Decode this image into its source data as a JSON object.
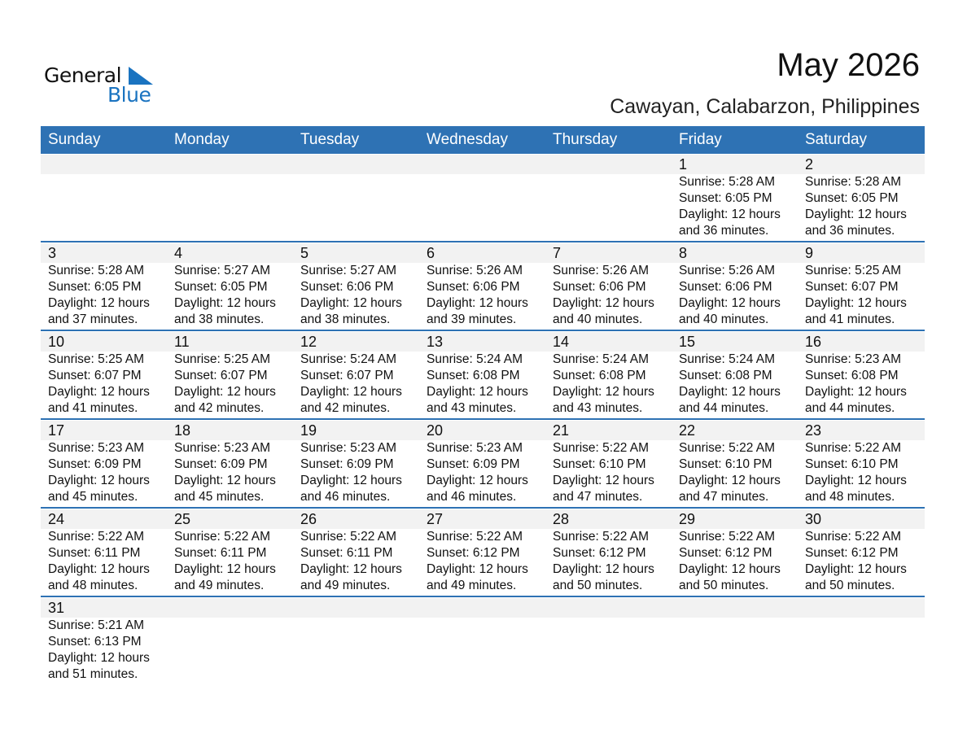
{
  "logo": {
    "line1": "General",
    "line2": "Blue"
  },
  "header": {
    "title": "May 2026",
    "subtitle": "Cawayan, Calabarzon, Philippines"
  },
  "colors": {
    "header_bg": "#2e72b4",
    "date_strip": "#f2f2f2",
    "logo_blue": "#1a73c0"
  },
  "weekdays": [
    "Sunday",
    "Monday",
    "Tuesday",
    "Wednesday",
    "Thursday",
    "Friday",
    "Saturday"
  ],
  "weeks": [
    [
      null,
      null,
      null,
      null,
      null,
      {
        "day": "1",
        "sunrise": "Sunrise: 5:28 AM",
        "sunset": "Sunset: 6:05 PM",
        "daylight": "Daylight: 12 hours",
        "minutes": "and 36 minutes."
      },
      {
        "day": "2",
        "sunrise": "Sunrise: 5:28 AM",
        "sunset": "Sunset: 6:05 PM",
        "daylight": "Daylight: 12 hours",
        "minutes": "and 36 minutes."
      }
    ],
    [
      {
        "day": "3",
        "sunrise": "Sunrise: 5:28 AM",
        "sunset": "Sunset: 6:05 PM",
        "daylight": "Daylight: 12 hours",
        "minutes": "and 37 minutes."
      },
      {
        "day": "4",
        "sunrise": "Sunrise: 5:27 AM",
        "sunset": "Sunset: 6:05 PM",
        "daylight": "Daylight: 12 hours",
        "minutes": "and 38 minutes."
      },
      {
        "day": "5",
        "sunrise": "Sunrise: 5:27 AM",
        "sunset": "Sunset: 6:06 PM",
        "daylight": "Daylight: 12 hours",
        "minutes": "and 38 minutes."
      },
      {
        "day": "6",
        "sunrise": "Sunrise: 5:26 AM",
        "sunset": "Sunset: 6:06 PM",
        "daylight": "Daylight: 12 hours",
        "minutes": "and 39 minutes."
      },
      {
        "day": "7",
        "sunrise": "Sunrise: 5:26 AM",
        "sunset": "Sunset: 6:06 PM",
        "daylight": "Daylight: 12 hours",
        "minutes": "and 40 minutes."
      },
      {
        "day": "8",
        "sunrise": "Sunrise: 5:26 AM",
        "sunset": "Sunset: 6:06 PM",
        "daylight": "Daylight: 12 hours",
        "minutes": "and 40 minutes."
      },
      {
        "day": "9",
        "sunrise": "Sunrise: 5:25 AM",
        "sunset": "Sunset: 6:07 PM",
        "daylight": "Daylight: 12 hours",
        "minutes": "and 41 minutes."
      }
    ],
    [
      {
        "day": "10",
        "sunrise": "Sunrise: 5:25 AM",
        "sunset": "Sunset: 6:07 PM",
        "daylight": "Daylight: 12 hours",
        "minutes": "and 41 minutes."
      },
      {
        "day": "11",
        "sunrise": "Sunrise: 5:25 AM",
        "sunset": "Sunset: 6:07 PM",
        "daylight": "Daylight: 12 hours",
        "minutes": "and 42 minutes."
      },
      {
        "day": "12",
        "sunrise": "Sunrise: 5:24 AM",
        "sunset": "Sunset: 6:07 PM",
        "daylight": "Daylight: 12 hours",
        "minutes": "and 42 minutes."
      },
      {
        "day": "13",
        "sunrise": "Sunrise: 5:24 AM",
        "sunset": "Sunset: 6:08 PM",
        "daylight": "Daylight: 12 hours",
        "minutes": "and 43 minutes."
      },
      {
        "day": "14",
        "sunrise": "Sunrise: 5:24 AM",
        "sunset": "Sunset: 6:08 PM",
        "daylight": "Daylight: 12 hours",
        "minutes": "and 43 minutes."
      },
      {
        "day": "15",
        "sunrise": "Sunrise: 5:24 AM",
        "sunset": "Sunset: 6:08 PM",
        "daylight": "Daylight: 12 hours",
        "minutes": "and 44 minutes."
      },
      {
        "day": "16",
        "sunrise": "Sunrise: 5:23 AM",
        "sunset": "Sunset: 6:08 PM",
        "daylight": "Daylight: 12 hours",
        "minutes": "and 44 minutes."
      }
    ],
    [
      {
        "day": "17",
        "sunrise": "Sunrise: 5:23 AM",
        "sunset": "Sunset: 6:09 PM",
        "daylight": "Daylight: 12 hours",
        "minutes": "and 45 minutes."
      },
      {
        "day": "18",
        "sunrise": "Sunrise: 5:23 AM",
        "sunset": "Sunset: 6:09 PM",
        "daylight": "Daylight: 12 hours",
        "minutes": "and 45 minutes."
      },
      {
        "day": "19",
        "sunrise": "Sunrise: 5:23 AM",
        "sunset": "Sunset: 6:09 PM",
        "daylight": "Daylight: 12 hours",
        "minutes": "and 46 minutes."
      },
      {
        "day": "20",
        "sunrise": "Sunrise: 5:23 AM",
        "sunset": "Sunset: 6:09 PM",
        "daylight": "Daylight: 12 hours",
        "minutes": "and 46 minutes."
      },
      {
        "day": "21",
        "sunrise": "Sunrise: 5:22 AM",
        "sunset": "Sunset: 6:10 PM",
        "daylight": "Daylight: 12 hours",
        "minutes": "and 47 minutes."
      },
      {
        "day": "22",
        "sunrise": "Sunrise: 5:22 AM",
        "sunset": "Sunset: 6:10 PM",
        "daylight": "Daylight: 12 hours",
        "minutes": "and 47 minutes."
      },
      {
        "day": "23",
        "sunrise": "Sunrise: 5:22 AM",
        "sunset": "Sunset: 6:10 PM",
        "daylight": "Daylight: 12 hours",
        "minutes": "and 48 minutes."
      }
    ],
    [
      {
        "day": "24",
        "sunrise": "Sunrise: 5:22 AM",
        "sunset": "Sunset: 6:11 PM",
        "daylight": "Daylight: 12 hours",
        "minutes": "and 48 minutes."
      },
      {
        "day": "25",
        "sunrise": "Sunrise: 5:22 AM",
        "sunset": "Sunset: 6:11 PM",
        "daylight": "Daylight: 12 hours",
        "minutes": "and 49 minutes."
      },
      {
        "day": "26",
        "sunrise": "Sunrise: 5:22 AM",
        "sunset": "Sunset: 6:11 PM",
        "daylight": "Daylight: 12 hours",
        "minutes": "and 49 minutes."
      },
      {
        "day": "27",
        "sunrise": "Sunrise: 5:22 AM",
        "sunset": "Sunset: 6:12 PM",
        "daylight": "Daylight: 12 hours",
        "minutes": "and 49 minutes."
      },
      {
        "day": "28",
        "sunrise": "Sunrise: 5:22 AM",
        "sunset": "Sunset: 6:12 PM",
        "daylight": "Daylight: 12 hours",
        "minutes": "and 50 minutes."
      },
      {
        "day": "29",
        "sunrise": "Sunrise: 5:22 AM",
        "sunset": "Sunset: 6:12 PM",
        "daylight": "Daylight: 12 hours",
        "minutes": "and 50 minutes."
      },
      {
        "day": "30",
        "sunrise": "Sunrise: 5:22 AM",
        "sunset": "Sunset: 6:12 PM",
        "daylight": "Daylight: 12 hours",
        "minutes": "and 50 minutes."
      }
    ],
    [
      {
        "day": "31",
        "sunrise": "Sunrise: 5:21 AM",
        "sunset": "Sunset: 6:13 PM",
        "daylight": "Daylight: 12 hours",
        "minutes": "and 51 minutes."
      },
      null,
      null,
      null,
      null,
      null,
      null
    ]
  ]
}
